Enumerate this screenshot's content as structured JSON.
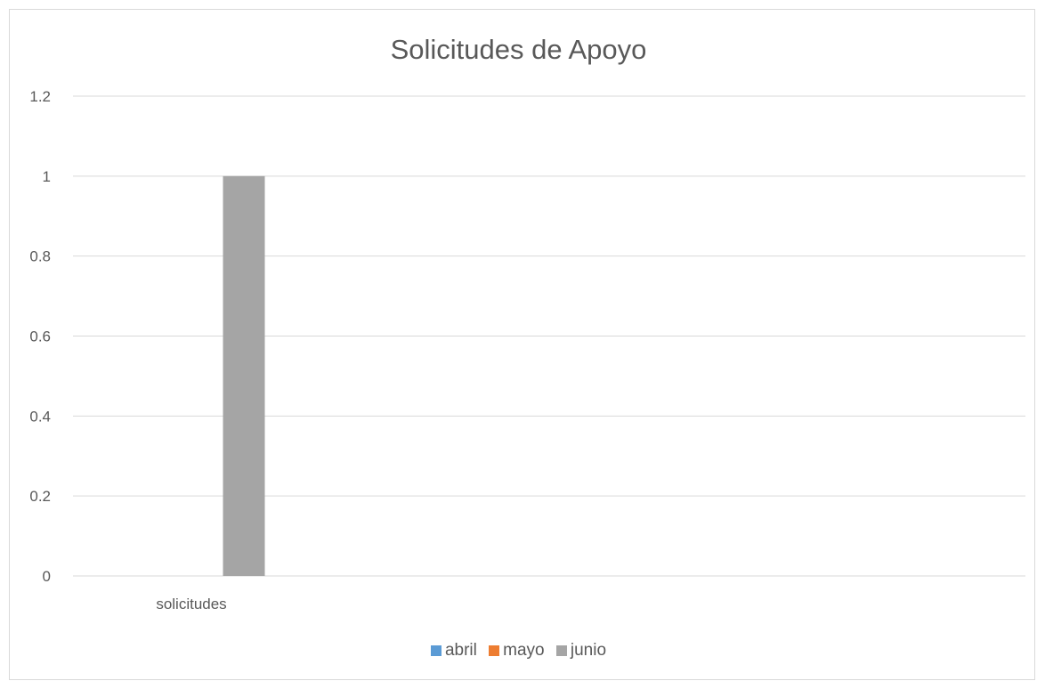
{
  "chart_data": {
    "type": "bar",
    "title": "Solicitudes de Apoyo",
    "categories": [
      "solicitudes"
    ],
    "series": [
      {
        "name": "abril",
        "values": [
          0
        ],
        "color": "#5b9bd5"
      },
      {
        "name": "mayo",
        "values": [
          0
        ],
        "color": "#ed7d31"
      },
      {
        "name": "junio",
        "values": [
          1
        ],
        "color": "#a5a5a5"
      }
    ],
    "yticks": [
      "0",
      "0.2",
      "0.4",
      "0.6",
      "0.8",
      "1",
      "1.2"
    ],
    "ylim": [
      0,
      1.2
    ],
    "grid": true,
    "legend_position": "bottom",
    "xlabel": "",
    "ylabel": ""
  }
}
